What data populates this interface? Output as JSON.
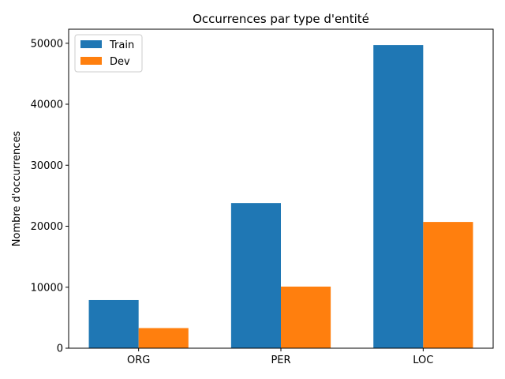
{
  "chart_data": {
    "type": "bar",
    "title": "Occurrences par type d'entité",
    "xlabel": "",
    "ylabel": "Nombre d'occurrences",
    "categories": [
      "ORG",
      "PER",
      "LOC"
    ],
    "series": [
      {
        "name": "Train",
        "values": [
          7900,
          23800,
          49700
        ],
        "color": "#1f77b4"
      },
      {
        "name": "Dev",
        "values": [
          3300,
          10100,
          20700
        ],
        "color": "#ff7f0e"
      }
    ],
    "ylim": [
      0,
      52300
    ],
    "yticks": [
      0,
      10000,
      20000,
      30000,
      40000,
      50000
    ],
    "grid": false,
    "legend_position": "top-left"
  }
}
